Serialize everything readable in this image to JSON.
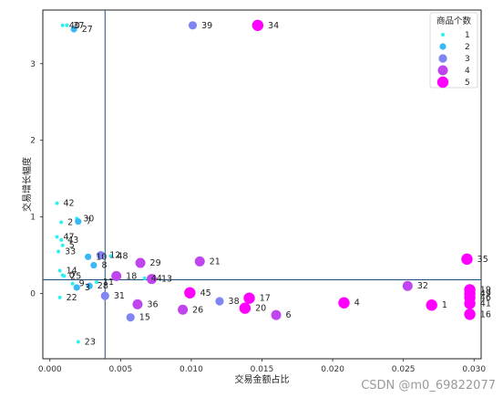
{
  "chart_data": {
    "type": "scatter",
    "title": "",
    "xlabel": "交易金额占比",
    "ylabel": "交易增长幅度",
    "xlim": [
      -0.0005,
      0.0305
    ],
    "ylim": [
      -0.85,
      3.7
    ],
    "xticks": [
      0.0,
      0.005,
      0.01,
      0.015,
      0.02,
      0.025,
      0.03
    ],
    "xtick_labels": [
      "0.000",
      "0.005",
      "0.010",
      "0.015",
      "0.020",
      "0.025",
      "0.030"
    ],
    "yticks": [
      0,
      1,
      2,
      3
    ],
    "ytick_labels": [
      "0",
      "1",
      "2",
      "3"
    ],
    "grid": false,
    "reference_lines": {
      "x": 0.0039,
      "y": 0.18
    },
    "legend": {
      "title": "商品个数",
      "placement": "top-right",
      "entries": [
        {
          "label": "1",
          "size_level": 1,
          "color": "#2ef0f0"
        },
        {
          "label": "2",
          "size_level": 2,
          "color": "#3ab8f5"
        },
        {
          "label": "3",
          "size_level": 3,
          "color": "#7f85f2"
        },
        {
          "label": "4",
          "size_level": 4,
          "color": "#bf45ef"
        },
        {
          "label": "5",
          "size_level": 5,
          "color": "#ff00ff"
        }
      ]
    },
    "points": [
      {
        "label": "40",
        "x": 0.0009,
        "y": 3.5,
        "count": 1
      },
      {
        "label": "37",
        "x": 0.0012,
        "y": 3.5,
        "count": 1
      },
      {
        "label": "27",
        "x": 0.0017,
        "y": 3.45,
        "count": 2
      },
      {
        "label": "39",
        "x": 0.0101,
        "y": 3.5,
        "count": 3
      },
      {
        "label": "34",
        "x": 0.0147,
        "y": 3.5,
        "count": 5
      },
      {
        "label": "42",
        "x": 0.0005,
        "y": 1.18,
        "count": 1
      },
      {
        "label": "30",
        "x": 0.0019,
        "y": 0.98,
        "count": 1
      },
      {
        "label": "2",
        "x": 0.0008,
        "y": 0.93,
        "count": 1
      },
      {
        "label": "7",
        "x": 0.002,
        "y": 0.94,
        "count": 2
      },
      {
        "label": "47",
        "x": 0.0005,
        "y": 0.74,
        "count": 1
      },
      {
        "label": "43",
        "x": 0.0008,
        "y": 0.7,
        "count": 1
      },
      {
        "label": "5",
        "x": 0.0009,
        "y": 0.63,
        "count": 1
      },
      {
        "label": "12",
        "x": 0.0036,
        "y": 0.5,
        "count": 3
      },
      {
        "label": "48",
        "x": 0.0043,
        "y": 0.49,
        "count": 1
      },
      {
        "label": "10",
        "x": 0.0027,
        "y": 0.48,
        "count": 2
      },
      {
        "label": "8",
        "x": 0.0031,
        "y": 0.37,
        "count": 2
      },
      {
        "label": "29",
        "x": 0.0064,
        "y": 0.4,
        "count": 4
      },
      {
        "label": "21",
        "x": 0.0106,
        "y": 0.42,
        "count": 4
      },
      {
        "label": "14",
        "x": 0.0007,
        "y": 0.3,
        "count": 1
      },
      {
        "label": "18",
        "x": 0.0047,
        "y": 0.23,
        "count": 4
      },
      {
        "label": "25",
        "x": 0.001,
        "y": 0.23,
        "count": 1
      },
      {
        "label": "44",
        "x": 0.0067,
        "y": 0.2,
        "count": 1
      },
      {
        "label": "13",
        "x": 0.0072,
        "y": 0.19,
        "count": 4
      },
      {
        "label": "11",
        "x": 0.0033,
        "y": 0.15,
        "count": 1
      },
      {
        "label": "9",
        "x": 0.0016,
        "y": 0.13,
        "count": 1
      },
      {
        "label": "28",
        "x": 0.0028,
        "y": 0.1,
        "count": 2
      },
      {
        "label": "3",
        "x": 0.0019,
        "y": 0.08,
        "count": 2
      },
      {
        "label": "35",
        "x": 0.0295,
        "y": 0.45,
        "count": 5
      },
      {
        "label": "32",
        "x": 0.0253,
        "y": 0.1,
        "count": 4
      },
      {
        "label": "19",
        "x": 0.0297,
        "y": 0.05,
        "count": 5
      },
      {
        "label": "49",
        "x": 0.0297,
        "y": 0.0,
        "count": 5
      },
      {
        "label": "46",
        "x": 0.0297,
        "y": -0.05,
        "count": 5
      },
      {
        "label": "41",
        "x": 0.0297,
        "y": -0.13,
        "count": 5
      },
      {
        "label": "16",
        "x": 0.0297,
        "y": -0.27,
        "count": 5
      },
      {
        "label": "22",
        "x": 0.0007,
        "y": -0.05,
        "count": 1
      },
      {
        "label": "31",
        "x": 0.0039,
        "y": -0.03,
        "count": 3
      },
      {
        "label": "45",
        "x": 0.0099,
        "y": 0.01,
        "count": 5
      },
      {
        "label": "36",
        "x": 0.0062,
        "y": -0.14,
        "count": 4
      },
      {
        "label": "38",
        "x": 0.012,
        "y": -0.1,
        "count": 3
      },
      {
        "label": "17",
        "x": 0.0141,
        "y": -0.06,
        "count": 5
      },
      {
        "label": "26",
        "x": 0.0094,
        "y": -0.21,
        "count": 4
      },
      {
        "label": "20",
        "x": 0.0138,
        "y": -0.19,
        "count": 5
      },
      {
        "label": "15",
        "x": 0.0057,
        "y": -0.31,
        "count": 3
      },
      {
        "label": "6",
        "x": 0.016,
        "y": -0.28,
        "count": 4
      },
      {
        "label": "4",
        "x": 0.0208,
        "y": -0.12,
        "count": 5
      },
      {
        "label": "1",
        "x": 0.027,
        "y": -0.15,
        "count": 5
      },
      {
        "label": "23",
        "x": 0.002,
        "y": -0.63,
        "count": 1
      },
      {
        "label": "33",
        "x": 0.0006,
        "y": 0.55,
        "count": 1
      },
      {
        "label": "0",
        "x": 0.0009,
        "y": 0.24,
        "count": 1
      }
    ]
  },
  "watermark": "CSDN @m0_69822077"
}
